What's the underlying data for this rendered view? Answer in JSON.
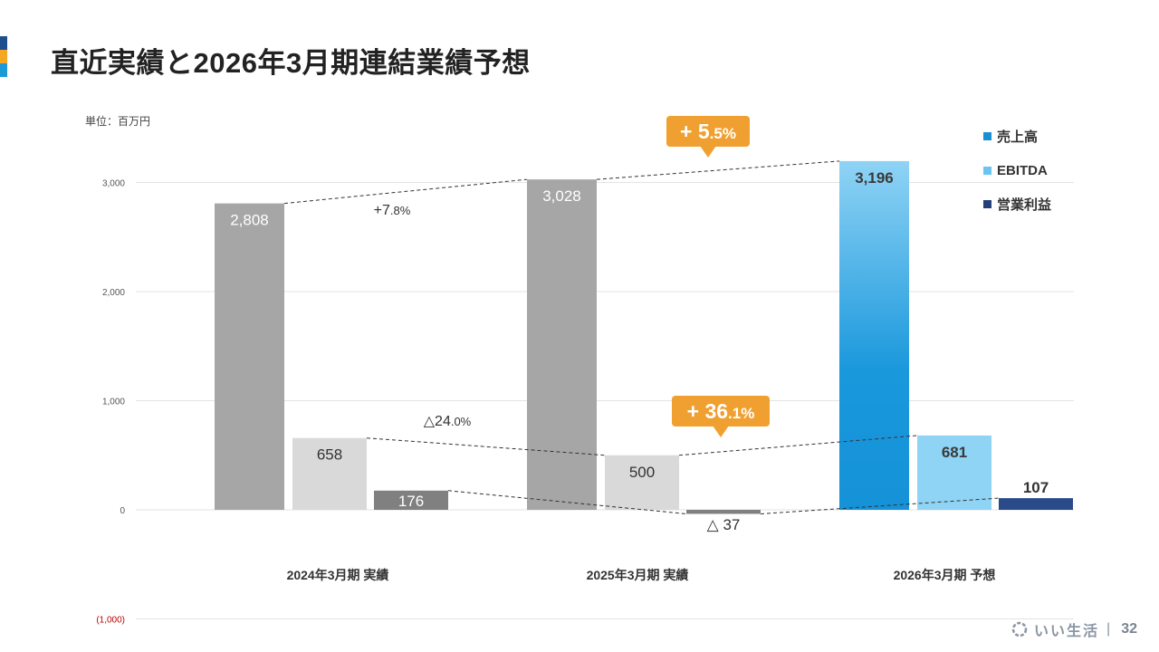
{
  "page": {
    "title": "直近実績と2026年3月期連結業績予想",
    "unit_label": "単位：百万円",
    "accent_colors": [
      "#1e4e8c",
      "#f5a623",
      "#1b9ad6"
    ],
    "footer": {
      "brand": "いい生活",
      "separator": "|",
      "page_number": "32",
      "logo_icon": "ring-logo-icon"
    }
  },
  "chart_data": {
    "type": "bar",
    "ylim": [
      -1000,
      3200
    ],
    "y_ticks": [
      {
        "value": 3000,
        "label": "3,000"
      },
      {
        "value": 2000,
        "label": "2,000"
      },
      {
        "value": 1000,
        "label": "1,000"
      },
      {
        "value": 0,
        "label": "0"
      },
      {
        "value": -1000,
        "label": "(1,000)"
      }
    ],
    "grid": true,
    "legend_position": "top-right",
    "categories": [
      "2024年3月期 実績",
      "2025年3月期 実績",
      "2026年3月期 予想"
    ],
    "series": [
      {
        "name": "売上高",
        "legend_color": "#1a8fd1",
        "values": [
          2808,
          3028,
          3196
        ],
        "labels": [
          "2,808",
          "3,028",
          "3,196"
        ],
        "colors": [
          "#a6a6a6",
          "#a6a6a6",
          "forecast-gradient"
        ]
      },
      {
        "name": "EBITDA",
        "legend_color": "#6cc5f0",
        "values": [
          658,
          500,
          681
        ],
        "labels": [
          "658",
          "500",
          "681"
        ],
        "colors": [
          "#d9d9d9",
          "#d9d9d9",
          "#8fd3f5"
        ]
      },
      {
        "name": "営業利益",
        "legend_color": "#23407a",
        "values": [
          176,
          -37,
          107
        ],
        "labels": [
          "176",
          "△ 37",
          "107"
        ],
        "colors": [
          "#808080",
          "#808080",
          "#2a4a8a"
        ]
      }
    ],
    "annotations": [
      {
        "text": "+7.8%",
        "style": "plain"
      },
      {
        "text": "△24.0%",
        "style": "plain"
      },
      {
        "text": "+ 5.5%",
        "style": "callout",
        "color": "#f0a030"
      },
      {
        "text": "+ 36.1%",
        "style": "callout",
        "color": "#f0a030"
      }
    ]
  }
}
